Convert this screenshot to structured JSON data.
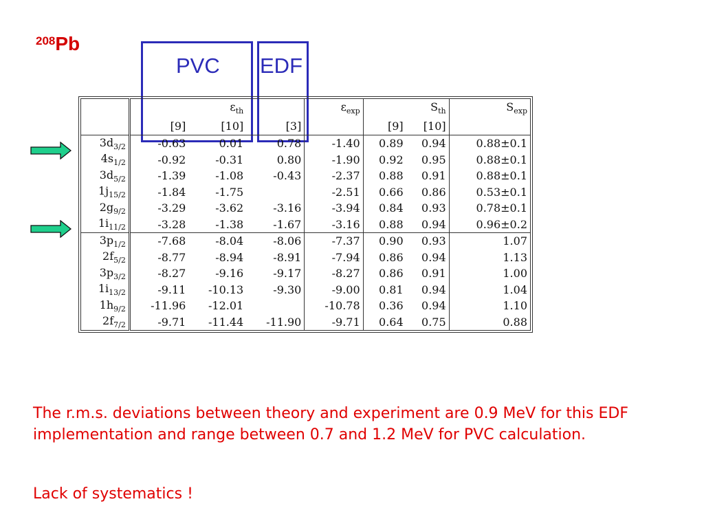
{
  "title": {
    "sup": "208",
    "main": "Pb"
  },
  "boxes": {
    "pvc_label": "PVC",
    "edf_label": "EDF"
  },
  "table": {
    "header": {
      "eth": "ε",
      "eth_sub": "th",
      "eexp": "ε",
      "eexp_sub": "exp",
      "sth": "S",
      "sth_sub": "th",
      "sexp": "S",
      "sexp_sub": "exp",
      "ref9": "[9]",
      "ref10": "[10]",
      "ref3": "[3]",
      "sref9": "[9]",
      "sref10": "[10]"
    },
    "rows": [
      {
        "n": "3d",
        "j": "3/2",
        "e9": "-0.63",
        "e10": "0.01",
        "e3": "0.78",
        "eexp": "-1.40",
        "s9": "0.89",
        "s10": "0.94",
        "sexp": "0.88±0.1"
      },
      {
        "n": "4s",
        "j": "1/2",
        "e9": "-0.92",
        "e10": "-0.31",
        "e3": "0.80",
        "eexp": "-1.90",
        "s9": "0.92",
        "s10": "0.95",
        "sexp": "0.88±0.1"
      },
      {
        "n": "3d",
        "j": "5/2",
        "e9": "-1.39",
        "e10": "-1.08",
        "e3": "-0.43",
        "eexp": "-2.37",
        "s9": "0.88",
        "s10": "0.91",
        "sexp": "0.88±0.1"
      },
      {
        "n": "1j",
        "j": "15/2",
        "e9": "-1.84",
        "e10": "-1.75",
        "e3": "",
        "eexp": "-2.51",
        "s9": "0.66",
        "s10": "0.86",
        "sexp": "0.53±0.1"
      },
      {
        "n": "2g",
        "j": "9/2",
        "e9": "-3.29",
        "e10": "-3.62",
        "e3": "-3.16",
        "eexp": "-3.94",
        "s9": "0.84",
        "s10": "0.93",
        "sexp": "0.78±0.1"
      },
      {
        "n": "1i",
        "j": "11/2",
        "e9": "-3.28",
        "e10": "-1.38",
        "e3": "-1.67",
        "eexp": "-3.16",
        "s9": "0.88",
        "s10": "0.94",
        "sexp": "0.96±0.2"
      },
      {
        "n": "3p",
        "j": "1/2",
        "e9": "-7.68",
        "e10": "-8.04",
        "e3": "-8.06",
        "eexp": "-7.37",
        "s9": "0.90",
        "s10": "0.93",
        "sexp": "1.07"
      },
      {
        "n": "2f",
        "j": "5/2",
        "e9": "-8.77",
        "e10": "-8.94",
        "e3": "-8.91",
        "eexp": "-7.94",
        "s9": "0.86",
        "s10": "0.94",
        "sexp": "1.13"
      },
      {
        "n": "3p",
        "j": "3/2",
        "e9": "-8.27",
        "e10": "-9.16",
        "e3": "-9.17",
        "eexp": "-8.27",
        "s9": "0.86",
        "s10": "0.91",
        "sexp": "1.00"
      },
      {
        "n": "1i",
        "j": "13/2",
        "e9": "-9.11",
        "e10": "-10.13",
        "e3": "-9.30",
        "eexp": "-9.00",
        "s9": "0.81",
        "s10": "0.94",
        "sexp": "1.04"
      },
      {
        "n": "1h",
        "j": "9/2",
        "e9": "-11.96",
        "e10": "-12.01",
        "e3": "",
        "eexp": "-10.78",
        "s9": "0.36",
        "s10": "0.94",
        "sexp": "1.10"
      },
      {
        "n": "2f",
        "j": "7/2",
        "e9": "-9.71",
        "e10": "-11.44",
        "e3": "-11.90",
        "eexp": "-9.71",
        "s9": "0.64",
        "s10": "0.75",
        "sexp": "0.88"
      }
    ]
  },
  "notes": {
    "line1": "The r.m.s. deviations between theory and experiment are 0.9 MeV for this EDF implementation and range between 0.7 and 1.2 MeV for PVC calculation.",
    "line2": "Lack of systematics !"
  },
  "colors": {
    "title": "#d40000",
    "box": "#2b2bb8",
    "note": "#e00000",
    "arrow_fill": "#1fcf8c"
  },
  "icons": [
    "arrow-right-icon"
  ]
}
